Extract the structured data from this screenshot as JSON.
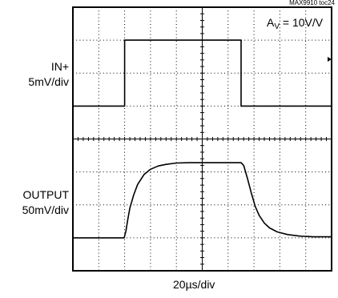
{
  "doc_id": "MAX9910 toc24",
  "annotation": {
    "base": "A",
    "sub": "V",
    "rest": " = 10V/V"
  },
  "traces": [
    {
      "label": "IN+",
      "scale": "5mV/div"
    },
    {
      "label": "OUTPUT",
      "scale": "50mV/div"
    }
  ],
  "time_scale": "20µs/div",
  "chart_data": {
    "type": "line",
    "title": "",
    "xlabel": "20µs/div",
    "ylabel": "",
    "grid": true,
    "divisions": {
      "x": 10,
      "y": 8
    },
    "xlim": [
      0,
      10
    ],
    "ylim": [
      0,
      8
    ],
    "series": [
      {
        "name": "IN+",
        "x": [
          0,
          2.0,
          2.0,
          6.5,
          6.5,
          10
        ],
        "y": [
          5.0,
          5.0,
          7.0,
          7.0,
          5.0,
          5.0
        ]
      },
      {
        "name": "OUTPUT",
        "x": [
          0,
          1.98,
          2.05,
          2.12,
          2.2,
          2.35,
          2.5,
          2.75,
          3.0,
          3.3,
          3.6,
          4.0,
          4.5,
          5.5,
          6.5,
          6.6,
          6.75,
          6.9,
          7.05,
          7.2,
          7.4,
          7.6,
          7.9,
          8.3,
          8.8,
          9.3,
          10
        ],
        "y": [
          1.0,
          1.0,
          1.2,
          1.55,
          1.9,
          2.3,
          2.62,
          2.92,
          3.08,
          3.18,
          3.23,
          3.27,
          3.28,
          3.28,
          3.28,
          3.2,
          2.8,
          2.35,
          1.95,
          1.68,
          1.45,
          1.3,
          1.18,
          1.1,
          1.05,
          1.03,
          1.03
        ]
      }
    ]
  }
}
